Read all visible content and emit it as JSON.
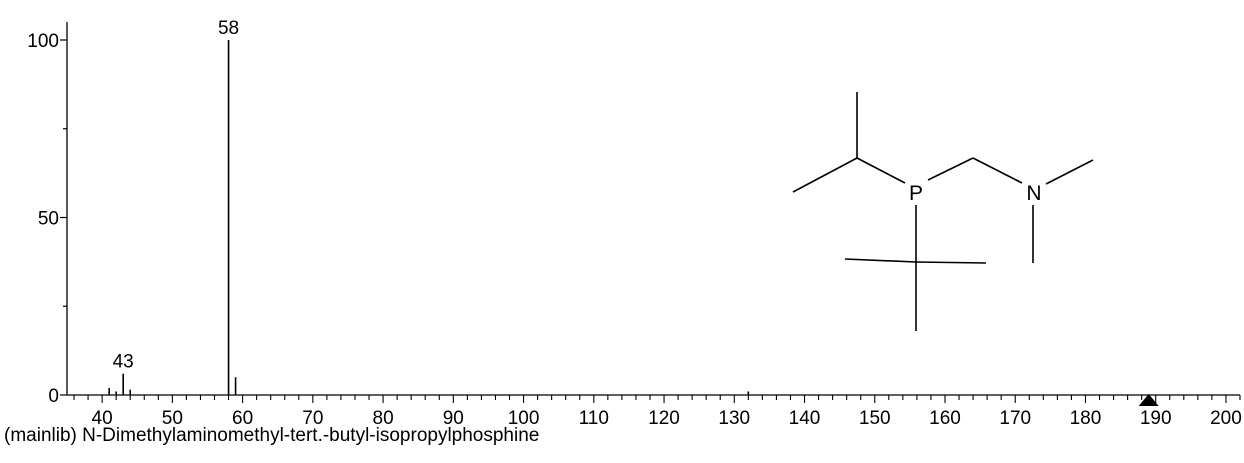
{
  "caption": "(mainlib) N-Dimethylaminomethyl-tert.-butyl-isopropylphosphine",
  "chart_data": {
    "type": "bar",
    "xlim": [
      35,
      202
    ],
    "ylim": [
      0,
      100
    ],
    "x_ticks": [
      40,
      50,
      60,
      70,
      80,
      90,
      100,
      110,
      120,
      130,
      140,
      150,
      160,
      170,
      180,
      190,
      200
    ],
    "y_ticks": [
      0,
      50,
      100
    ],
    "peaks": [
      {
        "mz": 41,
        "intensity": 2
      },
      {
        "mz": 42,
        "intensity": 1
      },
      {
        "mz": 43,
        "intensity": 6
      },
      {
        "mz": 44,
        "intensity": 1.5
      },
      {
        "mz": 58,
        "intensity": 100
      },
      {
        "mz": 59,
        "intensity": 5
      },
      {
        "mz": 132,
        "intensity": 1
      }
    ],
    "peak_labels": [
      {
        "mz": 43,
        "intensity": 6,
        "text": "43"
      },
      {
        "mz": 58,
        "intensity": 100,
        "text": "58"
      }
    ],
    "molecular_ion_marker_mz": 189
  },
  "structure": {
    "atoms": {
      "phosphorus": "P",
      "nitrogen": "N"
    }
  }
}
